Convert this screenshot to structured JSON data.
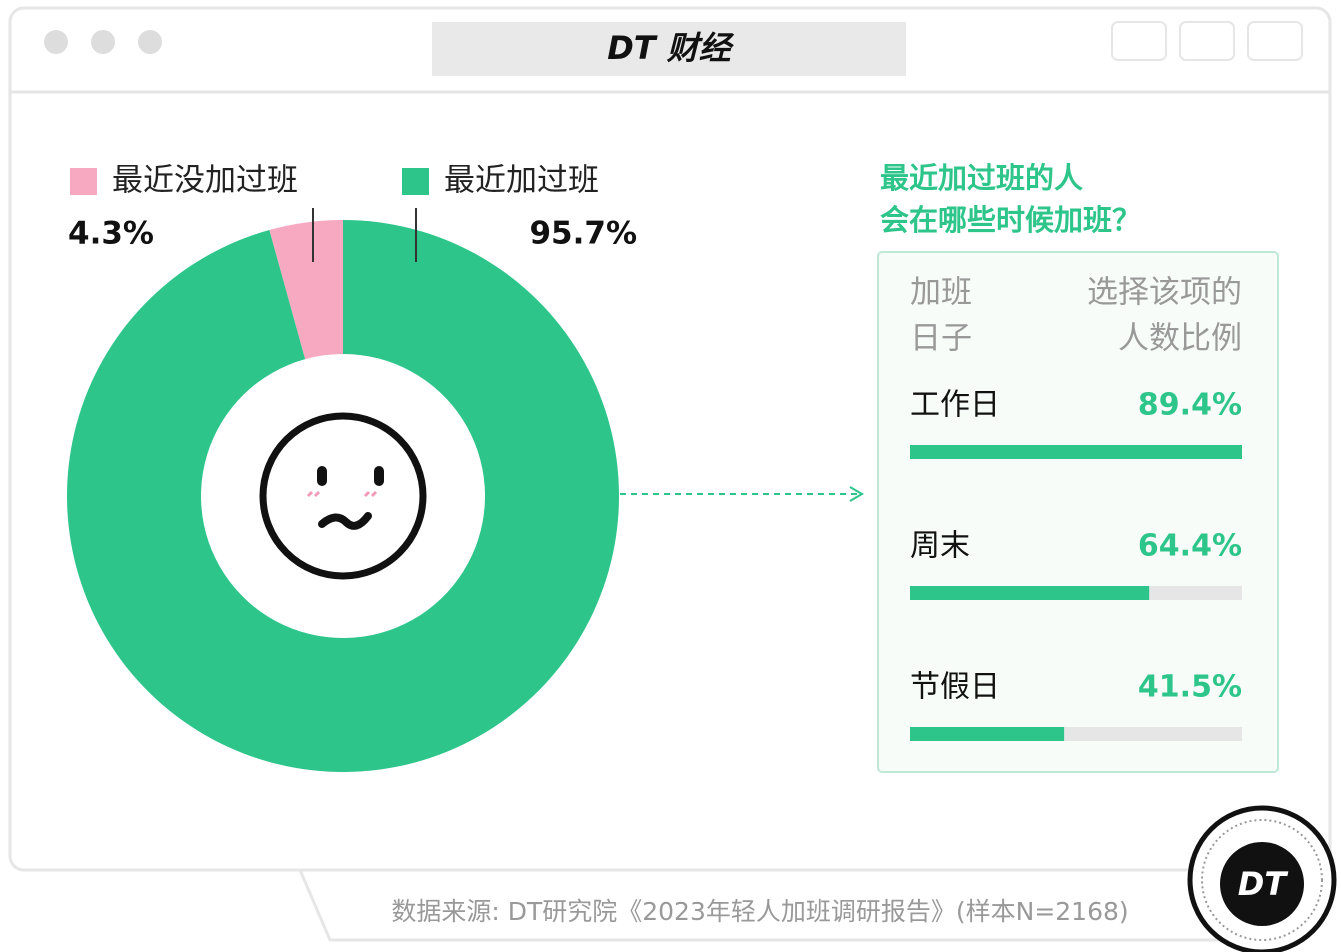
{
  "header": {
    "title": "DT 财经"
  },
  "chart_data": [
    {
      "type": "pie",
      "donut": true,
      "categories": [
        "最近没加过班",
        "最近加过班"
      ],
      "values": [
        4.3,
        95.7
      ],
      "value_labels": [
        "4.3%",
        "95.7%"
      ],
      "colors": [
        "#f7a9c1",
        "#2ec58a"
      ]
    },
    {
      "type": "bar",
      "orientation": "horizontal",
      "title_lines": [
        "最近加过班的人",
        "会在哪些时候加班？"
      ],
      "category_header": [
        "加班",
        "日子"
      ],
      "value_header": [
        "选择该项的",
        "人数比例"
      ],
      "categories": [
        "工作日",
        "周末",
        "节假日"
      ],
      "values": [
        89.4,
        64.4,
        41.5
      ],
      "value_labels": [
        "89.4%",
        "64.4%",
        "41.5%"
      ],
      "xlim": [
        0,
        89.4
      ],
      "color": "#2ec58a"
    }
  ],
  "source": "数据来源: DT研究院《2023年轻人加班调研报告》(样本N=2168)",
  "logo": "DT"
}
